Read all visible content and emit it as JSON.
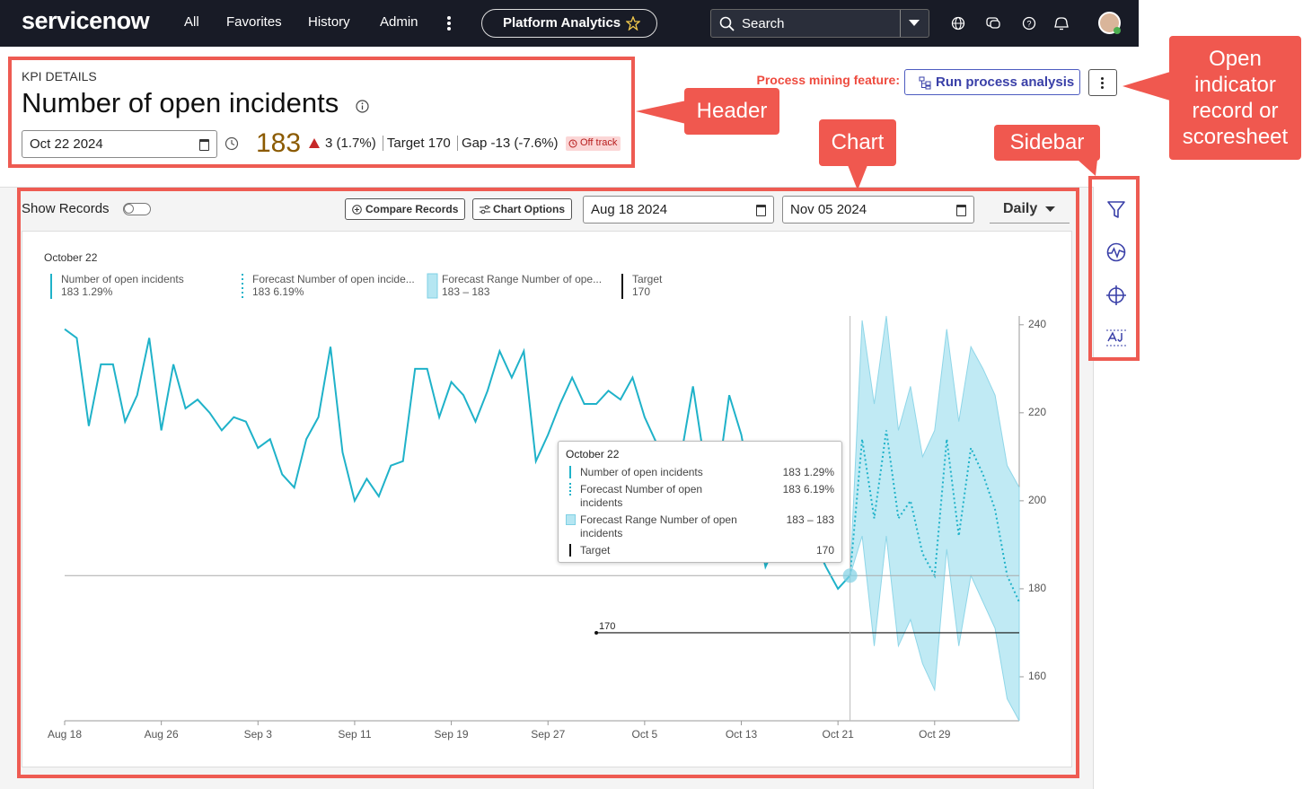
{
  "nav": {
    "logo": "servicenow",
    "items": [
      "All",
      "Favorites",
      "History",
      "Admin"
    ],
    "app": "Platform Analytics",
    "search": "Search"
  },
  "header": {
    "eyebrow": "KPI DETAILS",
    "title": "Number of open incidents",
    "date": "Oct 22 2024",
    "value": 183,
    "change": "3 (1.7%)",
    "target_label": "Target",
    "target": 170,
    "gap_label": "Gap",
    "gap": "-13 (-7.6%)",
    "status": "Off track"
  },
  "process": {
    "label": "Process mining feature:",
    "button": "Run process analysis"
  },
  "toolbar": {
    "show_records": "Show Records",
    "compare": "Compare Records",
    "options": "Chart Options",
    "start": "Aug 18 2024",
    "end": "Nov 05 2024",
    "interval": "Daily"
  },
  "annotations": [
    "Header",
    "Chart",
    "Sidebar",
    "Open indicator record or scoresheet"
  ],
  "chart_data": {
    "type": "line",
    "subtitle": "October 22",
    "x": [
      "Aug 18",
      "Aug 19",
      "Aug 20",
      "Aug 21",
      "Aug 22",
      "Aug 23",
      "Aug 24",
      "Aug 25",
      "Aug 26",
      "Aug 27",
      "Aug 28",
      "Aug 29",
      "Aug 30",
      "Aug 31",
      "Sep 1",
      "Sep 2",
      "Sep 3",
      "Sep 4",
      "Sep 5",
      "Sep 6",
      "Sep 7",
      "Sep 8",
      "Sep 9",
      "Sep 10",
      "Sep 11",
      "Sep 12",
      "Sep 13",
      "Sep 14",
      "Sep 15",
      "Sep 16",
      "Sep 17",
      "Sep 18",
      "Sep 19",
      "Sep 20",
      "Sep 21",
      "Sep 22",
      "Sep 23",
      "Sep 24",
      "Sep 25",
      "Sep 26",
      "Sep 27",
      "Sep 28",
      "Sep 29",
      "Sep 30",
      "Oct 1",
      "Oct 2",
      "Oct 3",
      "Oct 4",
      "Oct 5",
      "Oct 6",
      "Oct 7",
      "Oct 8",
      "Oct 9",
      "Oct 10",
      "Oct 11",
      "Oct 12",
      "Oct 13",
      "Oct 14",
      "Oct 15",
      "Oct 16",
      "Oct 17",
      "Oct 18",
      "Oct 19",
      "Oct 20",
      "Oct 21",
      "Oct 22",
      "Oct 23",
      "Oct 24",
      "Oct 25",
      "Oct 26",
      "Oct 27",
      "Oct 28",
      "Oct 29",
      "Oct 30",
      "Oct 31",
      "Nov 1",
      "Nov 2",
      "Nov 3",
      "Nov 4",
      "Nov 5"
    ],
    "xticks": [
      "Aug 18",
      "Aug 26",
      "Sep 3",
      "Sep 11",
      "Sep 19",
      "Sep 27",
      "Oct 5",
      "Oct 13",
      "Oct 21",
      "Oct 29"
    ],
    "ylim": [
      150,
      242
    ],
    "yticks": [
      160,
      180,
      200,
      220,
      240
    ],
    "grid": false,
    "series": [
      {
        "name": "Number of open incidents",
        "color": "#1fb2c9",
        "values": [
          239,
          237,
          217,
          231,
          231,
          218,
          224,
          237,
          216,
          231,
          221,
          223,
          220,
          216,
          219,
          218,
          212,
          214,
          206,
          203,
          214,
          219,
          235,
          211,
          200,
          205,
          201,
          208,
          209,
          230,
          230,
          219,
          227,
          224,
          218,
          225,
          234,
          228,
          234,
          209,
          215,
          222,
          228,
          222,
          222,
          225,
          223,
          228,
          219,
          213,
          212,
          210,
          226,
          208,
          204,
          224,
          215,
          200,
          185,
          191,
          194,
          196,
          191,
          185,
          180,
          183,
          null,
          null,
          null,
          null,
          null,
          null,
          null,
          null,
          null,
          null,
          null,
          null,
          null,
          null
        ]
      },
      {
        "name": "Forecast Number of open incidents",
        "color": "#1fb2c9",
        "dashed": true,
        "values": [
          null,
          null,
          null,
          null,
          null,
          null,
          null,
          null,
          null,
          null,
          null,
          null,
          null,
          null,
          null,
          null,
          null,
          null,
          null,
          null,
          null,
          null,
          null,
          null,
          null,
          null,
          null,
          null,
          null,
          null,
          null,
          null,
          null,
          null,
          null,
          null,
          null,
          null,
          null,
          null,
          null,
          null,
          null,
          null,
          null,
          null,
          null,
          null,
          null,
          null,
          null,
          null,
          null,
          null,
          null,
          null,
          null,
          null,
          null,
          null,
          null,
          null,
          null,
          null,
          null,
          183,
          214,
          196,
          216,
          196,
          200,
          188,
          183,
          214,
          192,
          212,
          206,
          198,
          183,
          177
        ]
      },
      {
        "name": "Forecast Range Number of open incidents",
        "color": "#b5e6f2",
        "upper": [
          null,
          null,
          null,
          null,
          null,
          null,
          null,
          null,
          null,
          null,
          null,
          null,
          null,
          null,
          null,
          null,
          null,
          null,
          null,
          null,
          null,
          null,
          null,
          null,
          null,
          null,
          null,
          null,
          null,
          null,
          null,
          null,
          null,
          null,
          null,
          null,
          null,
          null,
          null,
          null,
          null,
          null,
          null,
          null,
          null,
          null,
          null,
          null,
          null,
          null,
          null,
          null,
          null,
          null,
          null,
          null,
          null,
          null,
          null,
          null,
          null,
          null,
          null,
          null,
          null,
          183,
          241,
          222,
          242,
          216,
          226,
          210,
          216,
          239,
          218,
          235,
          230,
          224,
          208,
          203
        ],
        "lower": [
          null,
          null,
          null,
          null,
          null,
          null,
          null,
          null,
          null,
          null,
          null,
          null,
          null,
          null,
          null,
          null,
          null,
          null,
          null,
          null,
          null,
          null,
          null,
          null,
          null,
          null,
          null,
          null,
          null,
          null,
          null,
          null,
          null,
          null,
          null,
          null,
          null,
          null,
          null,
          null,
          null,
          null,
          null,
          null,
          null,
          null,
          null,
          null,
          null,
          null,
          null,
          null,
          null,
          null,
          null,
          null,
          null,
          null,
          null,
          null,
          null,
          null,
          null,
          null,
          null,
          183,
          192,
          167,
          192,
          167,
          173,
          163,
          157,
          189,
          167,
          183,
          177,
          171,
          155,
          150
        ]
      },
      {
        "name": "Target",
        "color": "#111111",
        "values": [
          null,
          null,
          null,
          null,
          null,
          null,
          null,
          null,
          null,
          null,
          null,
          null,
          null,
          null,
          null,
          null,
          null,
          null,
          null,
          null,
          null,
          null,
          null,
          null,
          null,
          null,
          null,
          null,
          null,
          null,
          null,
          null,
          null,
          null,
          null,
          null,
          null,
          null,
          null,
          null,
          null,
          null,
          null,
          null,
          170,
          170,
          170,
          170,
          170,
          170,
          170,
          170,
          170,
          170,
          170,
          170,
          170,
          170,
          170,
          170,
          170,
          170,
          170,
          170,
          170,
          170,
          170,
          170,
          170,
          170,
          170,
          170,
          170,
          170,
          170,
          170,
          170,
          170,
          170,
          170
        ]
      }
    ],
    "legend": [
      {
        "label": "Number of open incidents",
        "detail": "183 1.29%"
      },
      {
        "label": "Forecast Number of open incide...",
        "detail": "183 6.19%"
      },
      {
        "label": "Forecast Range Number of ope...",
        "detail": "183 – 183"
      },
      {
        "label": "Target",
        "detail": "170"
      }
    ],
    "tooltip_title": "October 22"
  }
}
